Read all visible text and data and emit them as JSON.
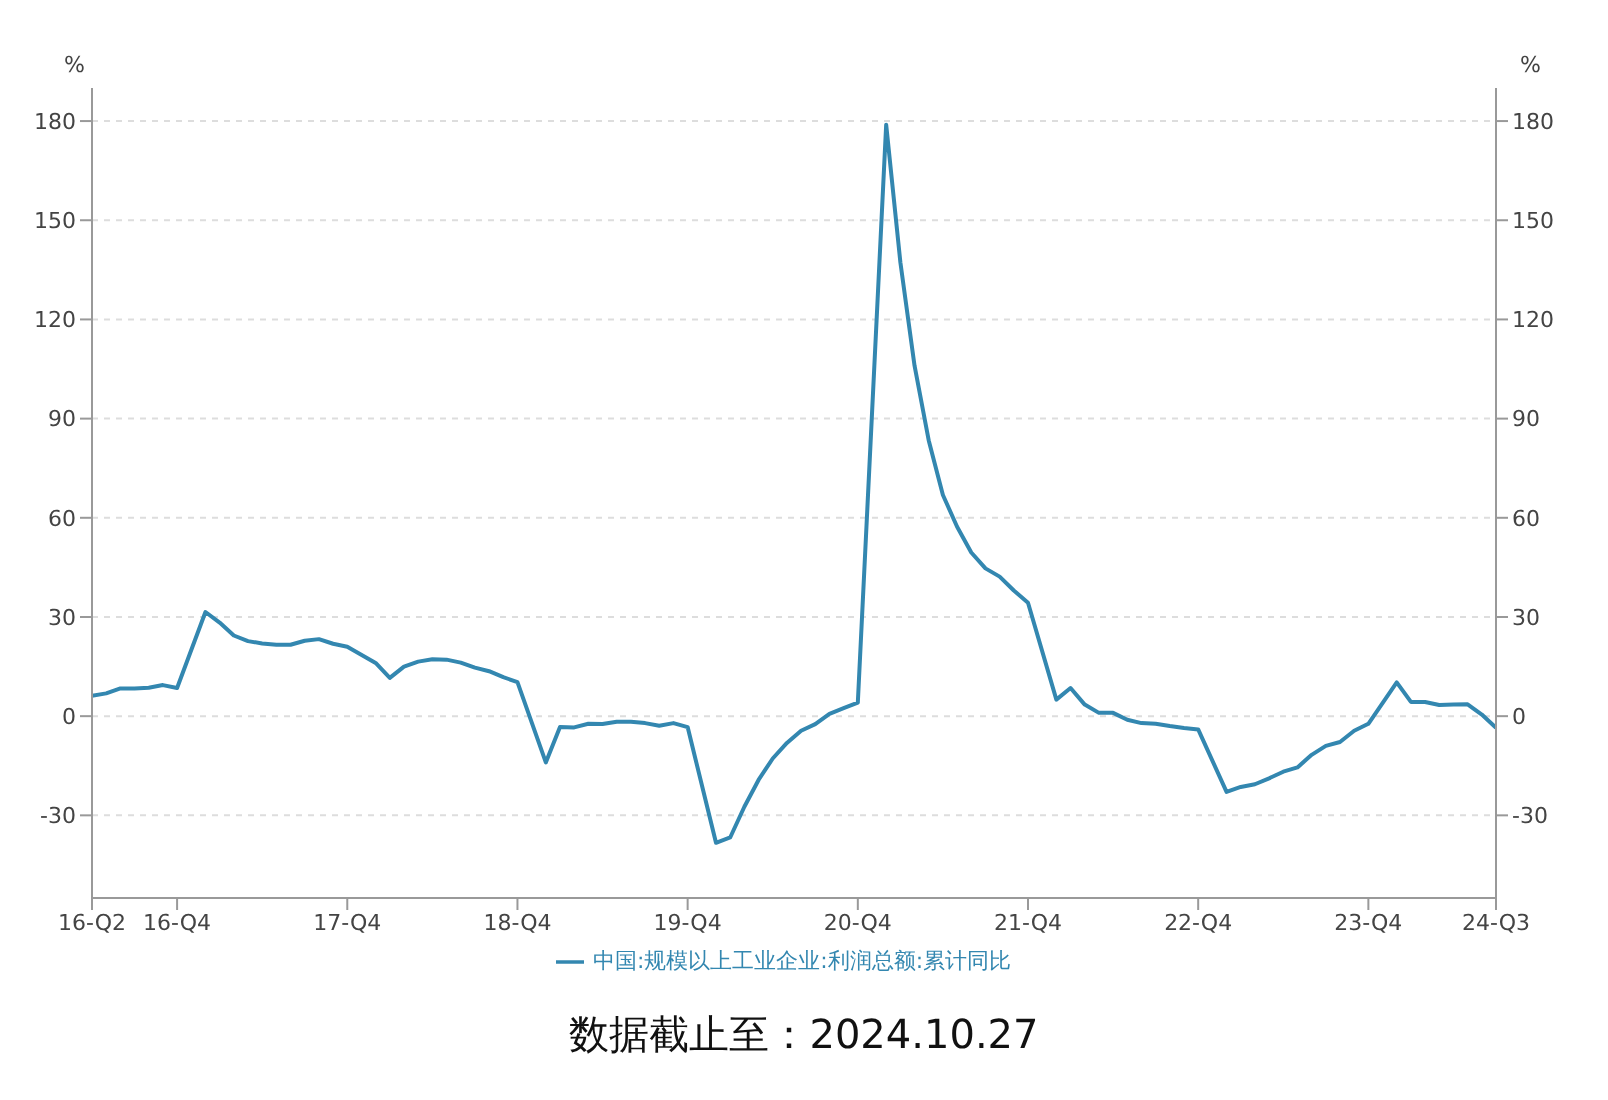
{
  "chart_data": {
    "type": "line",
    "ylabel": "%",
    "y2label": "%",
    "x": [
      "2016-06",
      "2016-07",
      "2016-08",
      "2016-09",
      "2016-10",
      "2016-11",
      "2016-12",
      "2017-02",
      "2017-03",
      "2017-04",
      "2017-05",
      "2017-06",
      "2017-07",
      "2017-08",
      "2017-09",
      "2017-10",
      "2017-11",
      "2017-12",
      "2018-02",
      "2018-03",
      "2018-04",
      "2018-05",
      "2018-06",
      "2018-07",
      "2018-08",
      "2018-09",
      "2018-10",
      "2018-11",
      "2018-12",
      "2019-02",
      "2019-03",
      "2019-04",
      "2019-05",
      "2019-06",
      "2019-07",
      "2019-08",
      "2019-09",
      "2019-10",
      "2019-11",
      "2019-12",
      "2020-02",
      "2020-03",
      "2020-04",
      "2020-05",
      "2020-06",
      "2020-07",
      "2020-08",
      "2020-09",
      "2020-10",
      "2020-11",
      "2020-12",
      "2021-02",
      "2021-03",
      "2021-04",
      "2021-05",
      "2021-06",
      "2021-07",
      "2021-08",
      "2021-09",
      "2021-10",
      "2021-11",
      "2021-12",
      "2022-02",
      "2022-03",
      "2022-04",
      "2022-05",
      "2022-06",
      "2022-07",
      "2022-08",
      "2022-09",
      "2022-10",
      "2022-11",
      "2022-12",
      "2023-02",
      "2023-03",
      "2023-04",
      "2023-05",
      "2023-06",
      "2023-07",
      "2023-08",
      "2023-09",
      "2023-10",
      "2023-11",
      "2023-12",
      "2024-02",
      "2024-03",
      "2024-04",
      "2024-05",
      "2024-06",
      "2024-07",
      "2024-08",
      "2024-09"
    ],
    "series": [
      {
        "name": "中国:规模以上工业企业:利润总额:累计同比",
        "color": "#3387b0",
        "values": [
          6.2,
          6.9,
          8.4,
          8.4,
          8.6,
          9.4,
          8.5,
          31.5,
          28.3,
          24.4,
          22.7,
          22.0,
          21.6,
          21.6,
          22.8,
          23.3,
          21.9,
          21.0,
          16.1,
          11.6,
          15.0,
          16.5,
          17.2,
          17.1,
          16.2,
          14.7,
          13.6,
          11.8,
          10.3,
          -14.0,
          -3.3,
          -3.4,
          -2.3,
          -2.4,
          -1.7,
          -1.7,
          -2.1,
          -2.9,
          -2.1,
          -3.3,
          -38.3,
          -36.7,
          -27.4,
          -19.3,
          -12.8,
          -8.1,
          -4.4,
          -2.4,
          0.7,
          2.4,
          4.1,
          178.9,
          137.3,
          106.0,
          83.4,
          66.9,
          57.3,
          49.5,
          44.7,
          42.2,
          38.0,
          34.3,
          5.0,
          8.5,
          3.5,
          1.0,
          1.0,
          -1.1,
          -2.1,
          -2.3,
          -3.0,
          -3.6,
          -4.0,
          -22.9,
          -21.4,
          -20.6,
          -18.8,
          -16.8,
          -15.5,
          -11.7,
          -9.0,
          -7.8,
          -4.4,
          -2.3,
          10.2,
          4.3,
          4.3,
          3.4,
          3.5,
          3.6,
          0.5,
          -3.5
        ]
      }
    ],
    "xlim": [
      "2016-06",
      "2024-09"
    ],
    "xticks": [
      {
        "value": "2016-06",
        "label": "16-Q2"
      },
      {
        "value": "2016-12",
        "label": "16-Q4"
      },
      {
        "value": "2017-12",
        "label": "17-Q4"
      },
      {
        "value": "2018-12",
        "label": "18-Q4"
      },
      {
        "value": "2019-12",
        "label": "19-Q4"
      },
      {
        "value": "2020-12",
        "label": "20-Q4"
      },
      {
        "value": "2021-12",
        "label": "21-Q4"
      },
      {
        "value": "2022-12",
        "label": "22-Q4"
      },
      {
        "value": "2023-12",
        "label": "23-Q4"
      },
      {
        "value": "2024-09",
        "label": "24-Q3"
      }
    ],
    "ylim": [
      -55,
      190
    ],
    "yticks": [
      -30,
      0,
      30,
      60,
      90,
      120,
      150,
      180
    ],
    "y2lim": [
      -55,
      190
    ],
    "y2ticks": [
      -30,
      0,
      30,
      60,
      90,
      120,
      150,
      180
    ],
    "grid": "y",
    "legend": "bottom",
    "marker": "none",
    "line_style": "solid",
    "annotations": [
      "数据截止至：2024.10.27"
    ]
  }
}
